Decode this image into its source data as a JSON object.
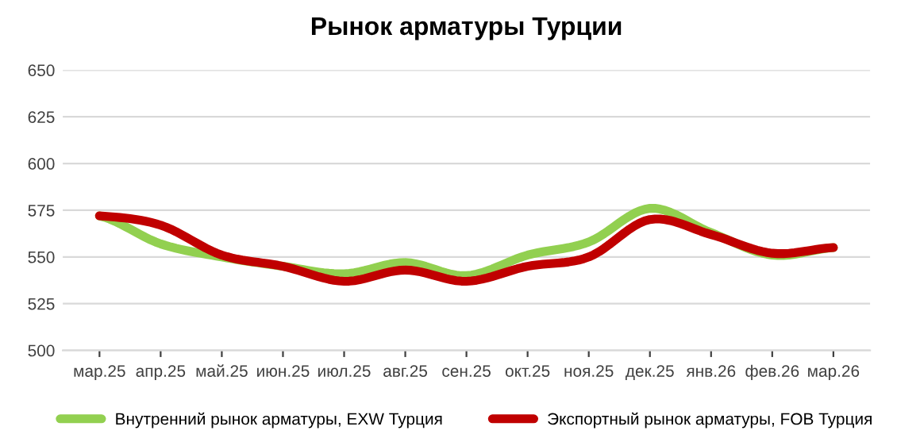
{
  "chart_data": {
    "type": "line",
    "title": "Рынок арматуры Турции",
    "categories": [
      "мар.25",
      "апр.25",
      "май.25",
      "июн.25",
      "июл.25",
      "авг.25",
      "сен.25",
      "окт.25",
      "ноя.25",
      "дек.25",
      "янв.26",
      "фев.26",
      "мар.26"
    ],
    "series": [
      {
        "name": "Внутренний рынок арматуры, EXW Турция",
        "color": "#92d050",
        "values": [
          572,
          557,
          550,
          545,
          541,
          547,
          540,
          551,
          558,
          576,
          563,
          551,
          555
        ]
      },
      {
        "name": "Экспортный рынок арматуры, FOB Турция",
        "color": "#c00000",
        "values": [
          572,
          567,
          551,
          545,
          537,
          543,
          537,
          545,
          550,
          570,
          562,
          552,
          555
        ]
      }
    ],
    "ylim": [
      500,
      650
    ],
    "yticks": [
      500,
      525,
      550,
      575,
      600,
      625,
      650
    ],
    "grid": "y",
    "legend": "bottom",
    "marker": "none",
    "line_style": "solid"
  }
}
